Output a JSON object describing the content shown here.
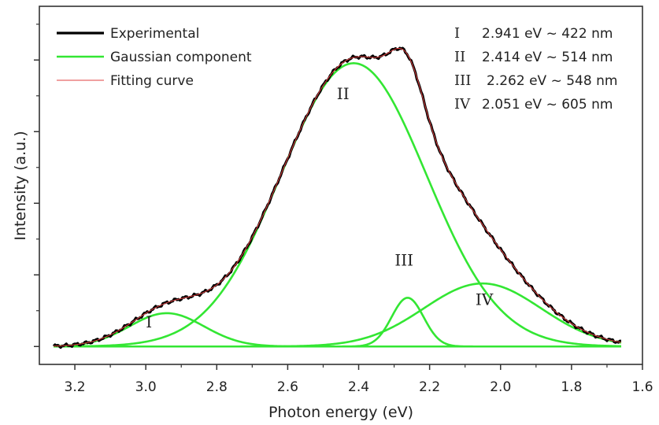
{
  "chart_data": {
    "type": "line",
    "title": "",
    "xlabel": "Photon energy (eV)",
    "ylabel": "Intensity (a.u.)",
    "xlim": [
      3.3,
      1.6
    ],
    "ylim": [
      0,
      1.0
    ],
    "x_reversed": true,
    "grid": false,
    "legend_position": "top-left",
    "x_ticks": [
      {
        "value": 3.2,
        "label": "3.2"
      },
      {
        "value": 3.0,
        "label": "3.0"
      },
      {
        "value": 2.8,
        "label": "2.8"
      },
      {
        "value": 2.6,
        "label": "2.6"
      },
      {
        "value": 2.4,
        "label": "2.4"
      },
      {
        "value": 2.2,
        "label": "2.2"
      },
      {
        "value": 2.0,
        "label": "2.0"
      },
      {
        "value": 1.8,
        "label": "1.8"
      },
      {
        "value": 1.6,
        "label": "1.6"
      }
    ],
    "y_ticks_major": [
      0.05,
      0.25,
      0.45,
      0.65,
      0.85
    ],
    "y_ticks_minor": [
      0.15,
      0.35,
      0.55,
      0.75,
      0.95
    ],
    "components": [
      {
        "id": "I",
        "label": "I",
        "center": 2.941,
        "amplitude": 0.093,
        "sigma": 0.105
      },
      {
        "id": "II",
        "label": "II",
        "center": 2.414,
        "amplitude": 0.791,
        "sigma": 0.205
      },
      {
        "id": "III",
        "label": "III",
        "center": 2.262,
        "amplitude": 0.136,
        "sigma": 0.045
      },
      {
        "id": "IV",
        "label": "IV",
        "center": 2.051,
        "amplitude": 0.176,
        "sigma": 0.165
      }
    ],
    "baseline": 0.05,
    "x_range": [
      3.26,
      1.66
    ],
    "series": [
      {
        "name": "Experimental",
        "color": "#000000",
        "width": 3.2
      },
      {
        "name": "Gaussian component",
        "color": "#33e633",
        "width": 2.6
      },
      {
        "name": "Fitting curve",
        "color": "#e04040",
        "width": 1.0
      }
    ],
    "annotations": [
      {
        "roman": "I",
        "text": "2.941 eV ~ 422 nm"
      },
      {
        "roman": "II",
        "text": "2.414 eV ~ 514 nm"
      },
      {
        "roman": "III",
        "text": "2.262 eV ~ 548 nm"
      },
      {
        "roman": "IV",
        "text": "2.051 eV ~ 605 nm"
      }
    ]
  }
}
